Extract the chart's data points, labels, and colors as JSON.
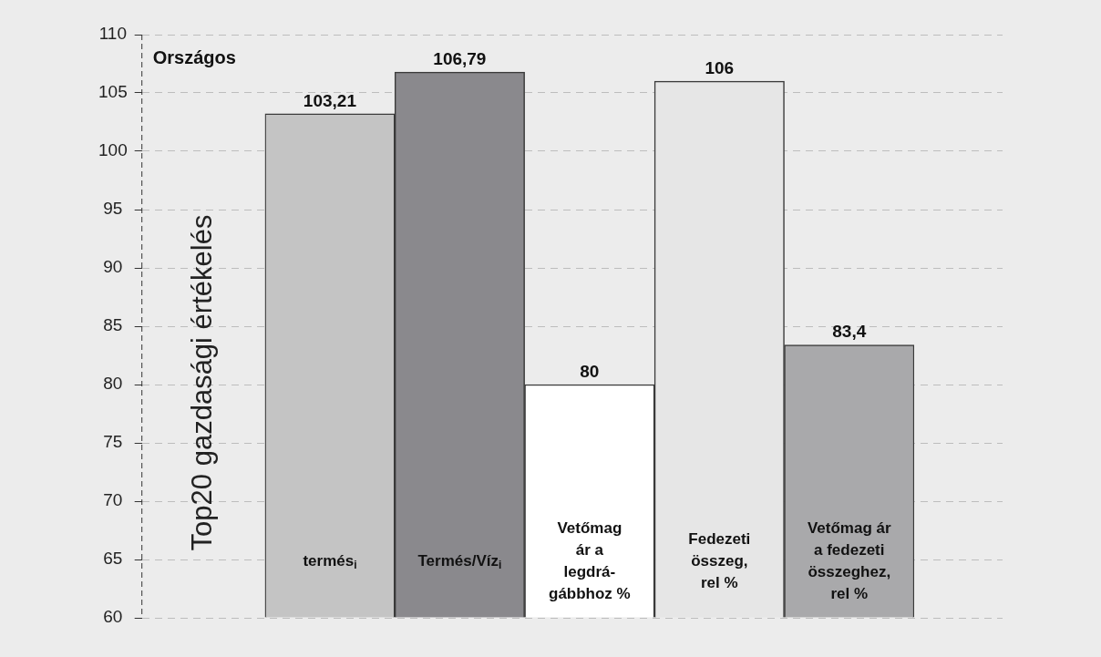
{
  "chart_data": {
    "type": "bar",
    "title": "Országos",
    "subtitle": "Top20 gazdasági értékelés",
    "categories": [
      "termés$_{i}$",
      "Termés/Víz$_{i}$",
      "Vetőmag\nár a\nlegdrá-\ngábbhoz %",
      "Fedezeti\nösszeg,\nrel %",
      "Vetőmag ár\na fedezeti\nösszeghez,\nrel %"
    ],
    "values": [
      103.21,
      106.79,
      80,
      106,
      83.4
    ],
    "value_labels": [
      "103,21",
      "106,79",
      "80",
      "106",
      "83,4"
    ],
    "colors": [
      "#c4c4c4",
      "#8a898d",
      "#ffffff",
      "#e6e6e6",
      "#a9a9ab"
    ],
    "ylim": [
      60,
      110
    ],
    "yticks": [
      60,
      65,
      70,
      75,
      80,
      85,
      90,
      95,
      100,
      105,
      110
    ],
    "grid": "y"
  }
}
